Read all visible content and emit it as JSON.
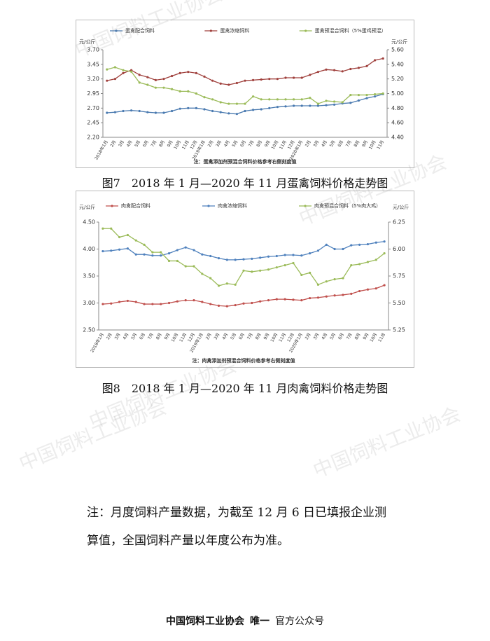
{
  "chart_data": [
    {
      "type": "line",
      "y_label": "元/公斤",
      "y2_label": "元/公斤",
      "note": "注：蛋禽添加剂预混合饲料价格参考右侧刻度值",
      "legend": "top",
      "categories": [
        "2018年1月",
        "2月",
        "3月",
        "4月",
        "5月",
        "6月",
        "7月",
        "8月",
        "9月",
        "10月",
        "11月",
        "12月",
        "2019年1月",
        "2月",
        "3月",
        "4月",
        "5月",
        "6月",
        "7月",
        "8月",
        "9月",
        "10月",
        "11月",
        "12月",
        "2020年1月",
        "2月",
        "3月",
        "4月",
        "5月",
        "6月",
        "7月",
        "8月",
        "9月",
        "10月",
        "11月"
      ],
      "ylim": [
        2.2,
        3.7
      ],
      "yticks": [
        {
          "value": 2.2,
          "label": "2.20"
        },
        {
          "value": 2.45,
          "label": "2.45"
        },
        {
          "value": 2.7,
          "label": "2.70"
        },
        {
          "value": 2.95,
          "label": "2.95"
        },
        {
          "value": 3.2,
          "label": "3.20"
        },
        {
          "value": 3.45,
          "label": "3.45"
        },
        {
          "value": 3.7,
          "label": "3.70"
        }
      ],
      "y2lim": [
        4.4,
        5.6
      ],
      "y2ticks": [
        {
          "value": 4.4,
          "label": "4.40"
        },
        {
          "value": 4.6,
          "label": "4.60"
        },
        {
          "value": 4.8,
          "label": "4.80"
        },
        {
          "value": 5.0,
          "label": "5.00"
        },
        {
          "value": 5.2,
          "label": "5.20"
        },
        {
          "value": 5.4,
          "label": "5.40"
        },
        {
          "value": 5.6,
          "label": "5.60"
        }
      ],
      "grid": false,
      "series": [
        {
          "name": "蛋禽配合饲料",
          "color": "#4a7ab0",
          "values": [
            2.62,
            2.63,
            2.65,
            2.66,
            2.65,
            2.63,
            2.62,
            2.62,
            2.65,
            2.69,
            2.7,
            2.7,
            2.68,
            2.65,
            2.63,
            2.61,
            2.6,
            2.65,
            2.67,
            2.68,
            2.7,
            2.72,
            2.73,
            2.74,
            2.74,
            2.74,
            2.74,
            2.75,
            2.76,
            2.78,
            2.79,
            2.83,
            2.87,
            2.9,
            2.94
          ]
        },
        {
          "name": "蛋禽浓缩饲料",
          "color": "#a0413d",
          "values": [
            3.17,
            3.2,
            3.3,
            3.35,
            3.27,
            3.23,
            3.18,
            3.2,
            3.25,
            3.3,
            3.32,
            3.3,
            3.24,
            3.17,
            3.12,
            3.1,
            3.13,
            3.17,
            3.18,
            3.19,
            3.2,
            3.2,
            3.22,
            3.22,
            3.22,
            3.27,
            3.32,
            3.36,
            3.35,
            3.33,
            3.37,
            3.39,
            3.42,
            3.52,
            3.55
          ]
        },
        {
          "name": "蛋禽预混合饲料（5%蛋鸡预混）",
          "color": "#9bbb59",
          "axis": "y2",
          "values": [
            5.33,
            5.36,
            5.32,
            5.3,
            5.15,
            5.12,
            5.08,
            5.08,
            5.06,
            5.03,
            5.03,
            5.0,
            4.95,
            4.92,
            4.88,
            4.86,
            4.86,
            4.86,
            4.96,
            4.92,
            4.92,
            4.92,
            4.92,
            4.92,
            4.92,
            4.94,
            4.86,
            4.9,
            4.89,
            4.88,
            4.98,
            4.98,
            4.98,
            4.99,
            5.0
          ]
        }
      ]
    },
    {
      "type": "line",
      "y_label": "元/公斤",
      "y2_label": "元/公斤",
      "note": "注：肉禽添加剂预混合饲料价格参考右侧刻度值",
      "legend": "top",
      "categories": [
        "2018年1月",
        "2月",
        "3月",
        "4月",
        "5月",
        "6月",
        "7月",
        "8月",
        "9月",
        "10月",
        "11月",
        "12月",
        "2019年1月",
        "2月",
        "3月",
        "4月",
        "5月",
        "6月",
        "7月",
        "8月",
        "9月",
        "10月",
        "11月",
        "12月",
        "2020年1月",
        "2月",
        "3月",
        "4月",
        "5月",
        "6月",
        "7月",
        "8月",
        "9月",
        "10月",
        "11月"
      ],
      "ylim": [
        2.5,
        4.5
      ],
      "yticks": [
        {
          "value": 2.5,
          "label": "2.50"
        },
        {
          "value": 3.0,
          "label": "3.00"
        },
        {
          "value": 3.5,
          "label": "3.50"
        },
        {
          "value": 4.0,
          "label": "4.00"
        },
        {
          "value": 4.5,
          "label": "4.50"
        }
      ],
      "y2lim": [
        5.25,
        6.25
      ],
      "y2ticks": [
        {
          "value": 5.25,
          "label": "5.25"
        },
        {
          "value": 5.5,
          "label": "5.50"
        },
        {
          "value": 5.75,
          "label": "5.75"
        },
        {
          "value": 6.0,
          "label": "6.00"
        },
        {
          "value": 6.25,
          "label": "6.25"
        }
      ],
      "grid": false,
      "series": [
        {
          "name": "肉禽配合饲料",
          "color": "#c0504d",
          "values": [
            2.98,
            2.99,
            3.02,
            3.04,
            3.02,
            2.98,
            2.98,
            2.98,
            3.0,
            3.03,
            3.05,
            3.05,
            3.02,
            2.98,
            2.95,
            2.94,
            2.96,
            2.99,
            3.0,
            3.03,
            3.05,
            3.07,
            3.07,
            3.06,
            3.05,
            3.09,
            3.1,
            3.12,
            3.14,
            3.15,
            3.17,
            3.22,
            3.25,
            3.27,
            3.33
          ]
        },
        {
          "name": "肉禽浓缩饲料",
          "color": "#4f81bd",
          "values": [
            3.96,
            3.97,
            3.99,
            4.01,
            3.9,
            3.9,
            3.88,
            3.88,
            3.92,
            3.98,
            4.03,
            3.98,
            3.9,
            3.87,
            3.83,
            3.8,
            3.8,
            3.81,
            3.82,
            3.84,
            3.86,
            3.87,
            3.89,
            3.89,
            3.88,
            3.92,
            3.97,
            4.08,
            4.0,
            4.0,
            4.07,
            4.08,
            4.09,
            4.12,
            4.14
          ]
        },
        {
          "name": "肉禽预混合饲料（5%肉大鸡）",
          "color": "#9bbb59",
          "axis": "y2",
          "values": [
            6.19,
            6.19,
            6.11,
            6.13,
            6.08,
            6.04,
            5.97,
            5.97,
            5.89,
            5.89,
            5.84,
            5.84,
            5.77,
            5.73,
            5.66,
            5.68,
            5.67,
            5.8,
            5.79,
            5.8,
            5.81,
            5.83,
            5.85,
            5.87,
            5.76,
            5.78,
            5.67,
            5.7,
            5.72,
            5.73,
            5.85,
            5.86,
            5.88,
            5.9,
            5.96
          ]
        }
      ]
    }
  ],
  "captions": [
    "图7　2018 年 1 月—2020 年 11 月蛋禽饲料价格走势图",
    "图8　2018 年 1 月—2020 年 11 月肉禽饲料价格走势图"
  ],
  "note": [
    "注：月度饲料产量数据，为截至 12 月 6 日已填报企业测",
    "算值，全国饲料产量以年度公布为准。"
  ],
  "footer": [
    "中国饲料工业协会",
    "唯一",
    "官方公众号"
  ],
  "watermark": "中国饲料工业协会"
}
